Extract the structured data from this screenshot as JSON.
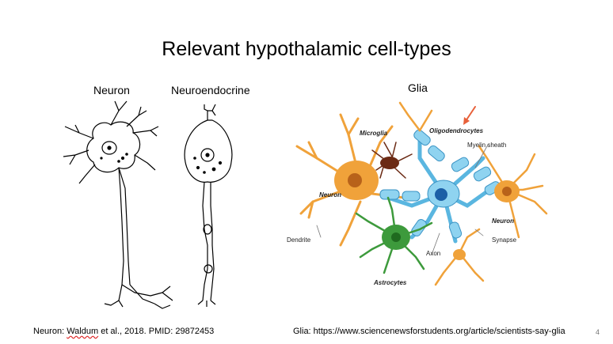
{
  "slide": {
    "title": "Relevant hypothalamic cell-types",
    "headers": {
      "neuron": "Neuron",
      "neuroendocrine": "Neuroendocrine",
      "glia": "Glia"
    },
    "labels": {
      "microglia": "Microglia",
      "oligodendrocytes": "Oligodendrocytes",
      "myelin_sheath": "Myelin sheath",
      "neuron_left": "Neuron",
      "neuron_right": "Neuron",
      "dendrite": "Dendrite",
      "synapse": "Synapse",
      "axon": "Axon",
      "astrocytes": "Astrocytes"
    },
    "footer": {
      "left_prefix": "Neuron: ",
      "left_author": "Waldum",
      "left_suffix": " et al., 2018. PMID: 29872453",
      "right": "Glia: https://www.sciencenewsforstudents.org/article/scientists-say-glia"
    },
    "page_number": "4"
  },
  "colors": {
    "orange": "#f0a23a",
    "blue": "#5ab6e0",
    "green": "#3d9a3c",
    "arrow": "#e8603a",
    "microglia": "#6b2a14"
  }
}
